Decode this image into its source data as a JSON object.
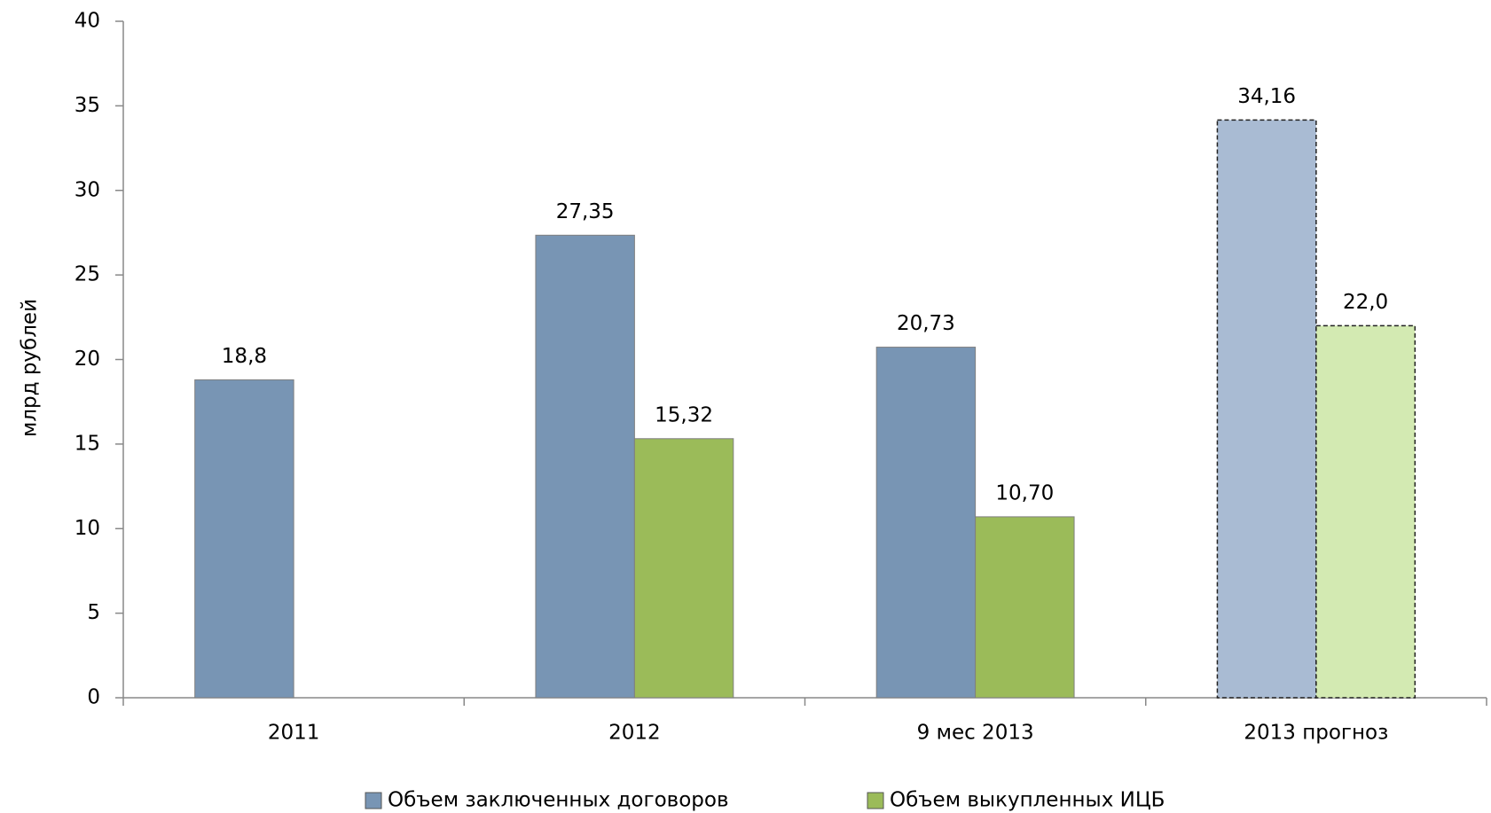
{
  "chart_data": {
    "type": "bar",
    "y_label": "млрд рублей",
    "categories": [
      "2011",
      "2012",
      "9 мес 2013",
      "2013 прогноз"
    ],
    "series": [
      {
        "name": "Объем заключенных договоров",
        "color": "#7895b4",
        "colors": [
          "#7895b4",
          "#7895b4",
          "#7895b4",
          "#a9bbd3"
        ],
        "values": [
          18.8,
          27.35,
          20.73,
          34.16
        ],
        "value_labels": [
          "18,8",
          "27,35",
          "20,73",
          "34,16"
        ]
      },
      {
        "name": "Объем выкупленных ИЦБ",
        "color": "#9bbb59",
        "colors": [
          "#9bbb59",
          "#9bbb59",
          "#9bbb59",
          "#d3eab2"
        ],
        "values": [
          null,
          15.32,
          10.7,
          22.0
        ],
        "value_labels": [
          null,
          "15,32",
          "10,70",
          "22,0"
        ]
      }
    ],
    "dashed": [
      false,
      false,
      false,
      true
    ],
    "ylim": [
      0,
      40
    ],
    "yticks": [
      0,
      5,
      10,
      15,
      20,
      25,
      30,
      35,
      40
    ],
    "grid": false,
    "legend": "bottom"
  }
}
